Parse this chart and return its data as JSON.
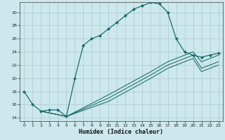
{
  "xlabel": "Humidex (Indice chaleur)",
  "bg_color": "#cce8ec",
  "grid_color": "#aac8cc",
  "line_color": "#1a6b6b",
  "xlim": [
    -0.5,
    23.5
  ],
  "ylim": [
    13.5,
    31.5
  ],
  "xticks": [
    0,
    1,
    2,
    3,
    4,
    5,
    6,
    7,
    8,
    9,
    10,
    11,
    12,
    13,
    14,
    15,
    16,
    17,
    18,
    19,
    20,
    21,
    22,
    23
  ],
  "yticks": [
    14,
    16,
    18,
    20,
    22,
    24,
    26,
    28,
    30
  ],
  "line1_x": [
    0,
    1,
    2,
    3,
    4,
    5,
    6,
    7,
    8,
    9,
    10,
    11,
    12,
    13,
    14,
    15,
    16,
    17,
    18,
    19,
    20,
    21,
    22,
    23
  ],
  "line1_y": [
    18,
    16,
    15,
    15.2,
    15.2,
    14.2,
    20,
    25,
    26,
    26.5,
    27.5,
    28.5,
    29.5,
    30.5,
    31,
    31.5,
    31.3,
    30,
    26,
    24,
    23.5,
    23.2,
    23.5,
    23.8
  ],
  "line2_x": [
    2,
    5,
    10,
    15,
    17,
    19,
    20,
    21,
    22,
    23
  ],
  "line2_y": [
    15,
    14.2,
    17.5,
    21,
    22.5,
    23.5,
    24,
    22.5,
    23,
    23.5
  ],
  "line3_x": [
    2,
    5,
    10,
    15,
    17,
    19,
    20,
    21,
    22,
    23
  ],
  "line3_y": [
    15,
    14.2,
    17,
    20.5,
    22,
    23,
    23.5,
    21.5,
    22,
    22.5
  ],
  "line4_x": [
    2,
    5,
    10,
    15,
    17,
    19,
    20,
    21,
    22,
    23
  ],
  "line4_y": [
    15,
    14.2,
    16.5,
    20,
    21.5,
    22.5,
    23,
    21,
    21.5,
    22
  ]
}
